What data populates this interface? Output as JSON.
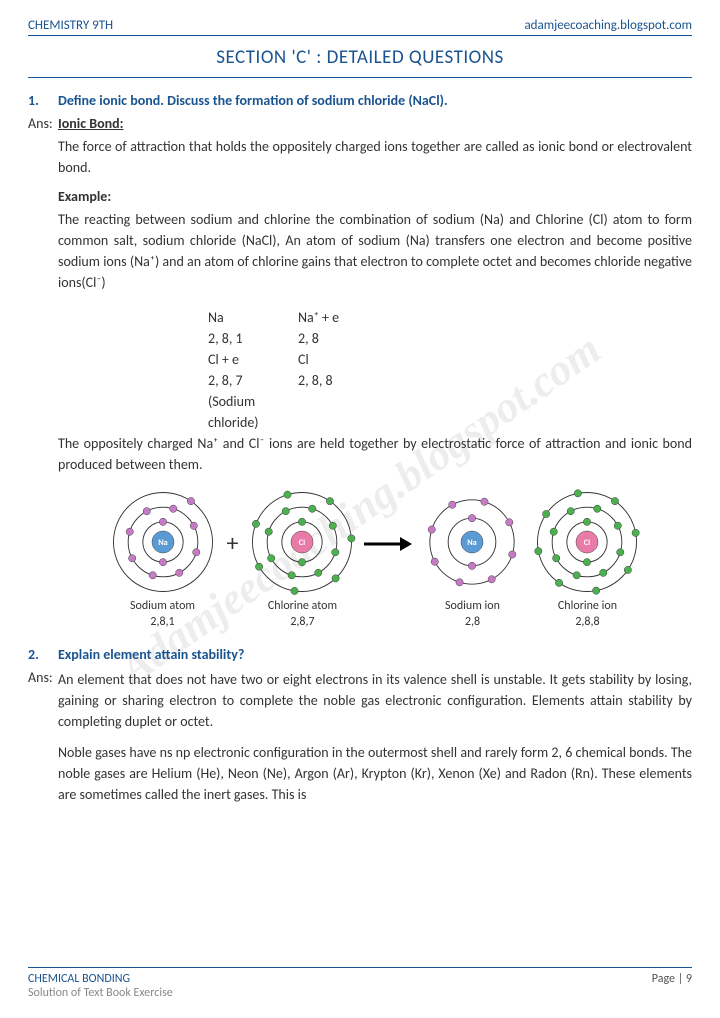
{
  "header": {
    "left": "CHEMISTRY 9TH",
    "right": "adamjeecoaching.blogspot.com"
  },
  "section_title": "SECTION 'C' : DETAILED QUESTIONS",
  "q1": {
    "num": "1.",
    "text": "Define ionic bond. Discuss the formation of sodium chloride (NaCl).",
    "ans_label": "Ans:",
    "subhead": "Ionic Bond:",
    "def": "The force of attraction that holds the oppositely charged ions together are called as ionic bond or electrovalent bond.",
    "ex_head": "Example:",
    "ex_text": "The reacting between sodium and chlorine the combination of sodium (Na) and Chlorine (Cl) atom to form common salt, sodium chloride (NaCl), An atom of sodium (Na) transfers one electron and become positive sodium ions (Na⁺) and an atom of chlorine gains that electron to complete octet and becomes chloride negative ions(Cl⁻)",
    "eq": [
      [
        "Na",
        "Na⁺ + e"
      ],
      [
        "2, 8, 1",
        "2, 8"
      ],
      [
        "Cl + e",
        "Cl"
      ],
      [
        "2, 8, 7",
        "2, 8, 8"
      ],
      [
        "(Sodium chloride)",
        ""
      ]
    ],
    "concl": "The oppositely charged Na⁺ and Cl⁻ ions are held together by electrostatic force of attraction and ionic bond produced between them.",
    "atoms": [
      {
        "name": "Sodium atom",
        "cfg": "2,8,1",
        "sym": "Na",
        "core": "#5b9bd5",
        "shells": [
          2,
          8,
          1
        ],
        "ecolor": "#c47bc4"
      },
      {
        "name": "Chlorine atom",
        "cfg": "2,8,7",
        "sym": "Cl",
        "core": "#e87ba8",
        "shells": [
          2,
          8,
          7
        ],
        "ecolor": "#4caf50"
      },
      {
        "name": "Sodium ion",
        "cfg": "2,8",
        "sym": "Na⁺",
        "core": "#5b9bd5",
        "shells": [
          2,
          8
        ],
        "ecolor": "#c47bc4"
      },
      {
        "name": "Chlorine ion",
        "cfg": "2,8,8",
        "sym": "Cl⁻",
        "core": "#e87ba8",
        "shells": [
          2,
          8,
          8
        ],
        "ecolor": "#4caf50"
      }
    ]
  },
  "q2": {
    "num": "2.",
    "text": "Explain element attain stability?",
    "ans_label": "Ans:",
    "p1": "An element that does not have two or eight electrons in its valence shell is unstable. It gets stability by losing, gaining or sharing electron to complete the noble gas electronic configuration. Elements attain stability by completing duplet or octet.",
    "p2": "Noble gases have ns np electronic configuration in the outermost shell and rarely form 2, 6 chemical bonds. The noble gases are Helium (He), Neon (Ne), Argon (Ar), Krypton (Kr), Xenon (Xe) and Radon (Rn). These elements are sometimes called the inert gases. This is"
  },
  "footer": {
    "title": "CHEMICAL BONDING",
    "sub": "Solution of Text Book Exercise",
    "page": "Page | 9"
  },
  "watermark": "Adamjeecoaching.blogspot.com",
  "colors": {
    "primary": "#1a5490",
    "na": "#5b9bd5",
    "cl": "#e87ba8",
    "na_e": "#c47bc4",
    "cl_e": "#4caf50"
  }
}
